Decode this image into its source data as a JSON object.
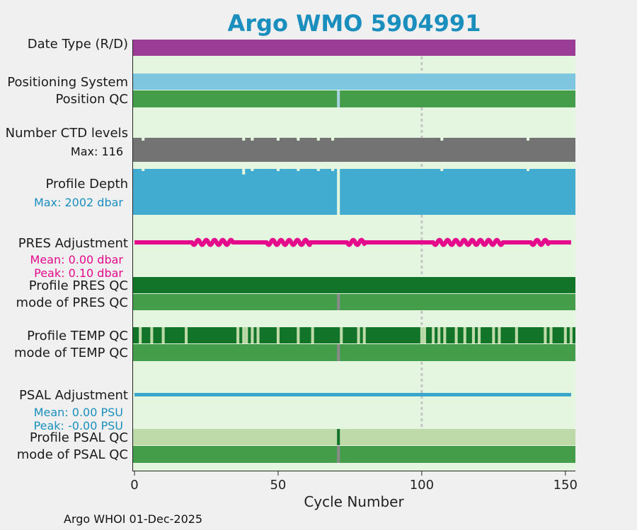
{
  "title": "Argo WMO 5904991",
  "footer": "Argo WHOI 01-Dec-2025",
  "colors": {
    "background": "#e4f6df",
    "date_type": "#9b3d96",
    "positioning": "#7ec5df",
    "qc_green": "#449d48",
    "qc_gap": "#a7d3e0",
    "ctd": "#737373",
    "depth": "#42abd0",
    "pres": "#e50a8c",
    "dark_green": "#127429",
    "light_green": "#bddaa8",
    "psal": "#3aa6cb",
    "grey_gap": "#8a8a8a",
    "title": "#1a8fbe",
    "grid": "#c4c4c4"
  },
  "labels": {
    "date_type": "Date Type (R/D)",
    "positioning": "Positioning System",
    "position_qc": "Position QC",
    "ctd_levels": "Number CTD levels",
    "ctd_max": "Max: 116",
    "profile_depth": "Profile Depth",
    "depth_max": "Max: 2002 dbar",
    "pres_adjustment": "PRES Adjustment",
    "pres_mean": "Mean: 0.00 dbar",
    "pres_peak": "Peak: 0.10 dbar",
    "profile_pres_qc": "Profile PRES QC",
    "mode_pres_qc": "mode of PRES QC",
    "profile_temp_qc": "Profile TEMP QC",
    "mode_temp_qc": "mode of TEMP QC",
    "psal_adjustment": "PSAL Adjustment",
    "psal_mean": "Mean: 0.00 PSU",
    "psal_peak": "Peak: -0.00 PSU",
    "profile_psal_qc": "Profile PSAL QC",
    "mode_psal_qc": "mode of PSAL QC"
  },
  "chart_data": {
    "type": "bar",
    "title": "Argo WMO 5904991",
    "xlabel": "Cycle Number",
    "xlim": [
      -0.5,
      153.5
    ],
    "xticks": [
      0,
      50,
      100,
      150
    ],
    "vline_x": 100,
    "n_cycles": 153,
    "position_qc_gap_cycles": [
      71
    ],
    "mode_qc_grey_cycles": [
      71
    ],
    "ctd_max_levels": 116,
    "ctd_dip_cycles": [
      3,
      38,
      41,
      50,
      57,
      64,
      69,
      107,
      137
    ],
    "max_depth_dbar": 2002,
    "depth_dip_cycles": [
      3,
      38,
      41,
      50,
      57,
      64,
      69,
      107,
      137
    ],
    "depth_gap_cycles": [
      71
    ],
    "pres_adjustment_mean_dbar": 0.0,
    "pres_adjustment_peak_dbar": 0.1,
    "pres_wiggle_ranges": [
      [
        20,
        34
      ],
      [
        46,
        61
      ],
      [
        74,
        80
      ],
      [
        104,
        128
      ],
      [
        138,
        144
      ]
    ],
    "temp_qc_gap_cycles": [
      2,
      6,
      10,
      18,
      36,
      38,
      39,
      41,
      43,
      50,
      57,
      62,
      72,
      78,
      80,
      100,
      101,
      104,
      106,
      108,
      112,
      115,
      118,
      120,
      125,
      127,
      133,
      143,
      145,
      150,
      152
    ],
    "psal_adjustment_mean_psu": 0.0,
    "psal_adjustment_peak_psu": -0.0,
    "psal_qc_dark_cycles": [
      71
    ]
  }
}
